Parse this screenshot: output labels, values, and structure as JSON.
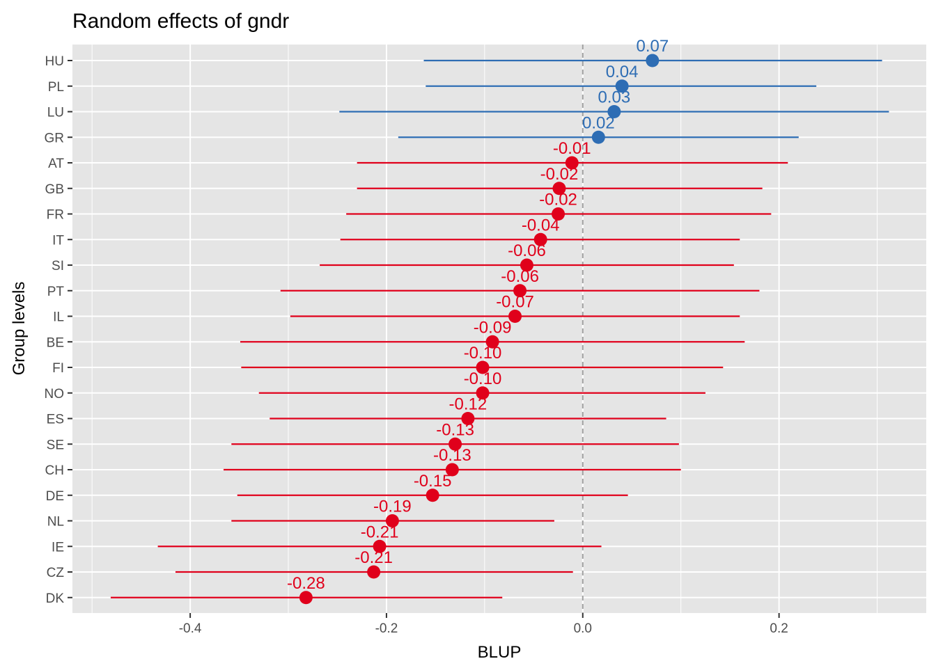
{
  "chart_data": {
    "type": "forest",
    "title": "Random effects of  gndr",
    "xlabel": "BLUP",
    "ylabel": "Group levels",
    "xlim": [
      -0.52,
      0.35
    ],
    "xticks": [
      -0.4,
      -0.2,
      0.0,
      0.2
    ],
    "xtick_labels": [
      "-0.4",
      "-0.2",
      "0.0",
      "0.2"
    ],
    "reference_line": 0,
    "grid": true,
    "colors": {
      "positive": "#2e6db4",
      "negative": "#e0001b",
      "panel": "#e5e5e5",
      "reference": "#a0a0a0"
    },
    "points": [
      {
        "group": "HU",
        "estimate": 0.071,
        "lower": -0.162,
        "upper": 0.305,
        "label": "0.07"
      },
      {
        "group": "PL",
        "estimate": 0.04,
        "lower": -0.16,
        "upper": 0.238,
        "label": "0.04"
      },
      {
        "group": "LU",
        "estimate": 0.032,
        "lower": -0.248,
        "upper": 0.312,
        "label": "0.03"
      },
      {
        "group": "GR",
        "estimate": 0.016,
        "lower": -0.188,
        "upper": 0.22,
        "label": "0.02"
      },
      {
        "group": "AT",
        "estimate": -0.011,
        "lower": -0.23,
        "upper": 0.209,
        "label": "-0.01"
      },
      {
        "group": "GB",
        "estimate": -0.024,
        "lower": -0.23,
        "upper": 0.183,
        "label": "-0.02"
      },
      {
        "group": "FR",
        "estimate": -0.025,
        "lower": -0.241,
        "upper": 0.192,
        "label": "-0.02"
      },
      {
        "group": "IT",
        "estimate": -0.043,
        "lower": -0.247,
        "upper": 0.16,
        "label": "-0.04"
      },
      {
        "group": "SI",
        "estimate": -0.057,
        "lower": -0.268,
        "upper": 0.154,
        "label": "-0.06"
      },
      {
        "group": "PT",
        "estimate": -0.064,
        "lower": -0.308,
        "upper": 0.18,
        "label": "-0.06"
      },
      {
        "group": "IL",
        "estimate": -0.069,
        "lower": -0.298,
        "upper": 0.16,
        "label": "-0.07"
      },
      {
        "group": "BE",
        "estimate": -0.092,
        "lower": -0.349,
        "upper": 0.165,
        "label": "-0.09"
      },
      {
        "group": "FI",
        "estimate": -0.102,
        "lower": -0.348,
        "upper": 0.143,
        "label": "-0.10"
      },
      {
        "group": "NO",
        "estimate": -0.102,
        "lower": -0.33,
        "upper": 0.125,
        "label": "-0.10"
      },
      {
        "group": "ES",
        "estimate": -0.117,
        "lower": -0.319,
        "upper": 0.085,
        "label": "-0.12"
      },
      {
        "group": "SE",
        "estimate": -0.13,
        "lower": -0.358,
        "upper": 0.098,
        "label": "-0.13"
      },
      {
        "group": "CH",
        "estimate": -0.133,
        "lower": -0.366,
        "upper": 0.1,
        "label": "-0.13"
      },
      {
        "group": "DE",
        "estimate": -0.153,
        "lower": -0.352,
        "upper": 0.046,
        "label": "-0.15"
      },
      {
        "group": "NL",
        "estimate": -0.194,
        "lower": -0.358,
        "upper": -0.029,
        "label": "-0.19"
      },
      {
        "group": "IE",
        "estimate": -0.207,
        "lower": -0.433,
        "upper": 0.019,
        "label": "-0.21"
      },
      {
        "group": "CZ",
        "estimate": -0.213,
        "lower": -0.415,
        "upper": -0.01,
        "label": "-0.21"
      },
      {
        "group": "DK",
        "estimate": -0.282,
        "lower": -0.481,
        "upper": -0.082,
        "label": "-0.28"
      }
    ]
  }
}
